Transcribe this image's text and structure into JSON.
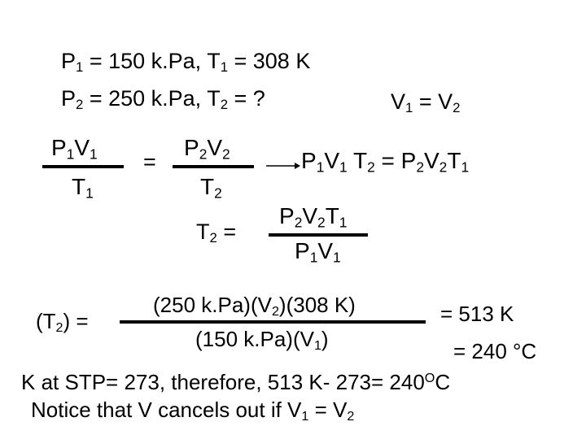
{
  "given": {
    "line1": [
      "P",
      "1",
      " = 150 k.Pa,  T",
      "1",
      " = 308 K"
    ],
    "line2": [
      "P",
      "2",
      " = 250 k.Pa,  T",
      "2",
      " = ?"
    ],
    "volume": [
      "V",
      "1",
      " = V",
      "2"
    ]
  },
  "law": {
    "left_num": [
      "P",
      "1",
      "V",
      "1"
    ],
    "left_den": [
      "T",
      "1"
    ],
    "equals": "=",
    "right_num": [
      "P",
      "2",
      "V",
      "2"
    ],
    "right_den": [
      "T",
      "2"
    ],
    "cross": [
      "P",
      "1",
      "V",
      "1",
      " T",
      "2",
      "  =  P",
      "2",
      "V",
      "2",
      "T",
      "1"
    ]
  },
  "solve": {
    "lhs": [
      "T",
      "2",
      "  ="
    ],
    "num": [
      "P",
      "2",
      "V",
      "2",
      "T",
      "1"
    ],
    "den": [
      "P",
      "1",
      "V",
      "1"
    ]
  },
  "calc": {
    "lhs": [
      "(T",
      "2",
      ")  ="
    ],
    "num": [
      "(250 k.Pa)(V",
      "2",
      ")(308 K)"
    ],
    "den": [
      "(150 k.Pa)(V",
      "1",
      ")"
    ],
    "result_k": "=  513 K",
    "result_c": "= 240 °C"
  },
  "notes": {
    "stp": [
      "K at STP= 273, therefore, 513 K- 273= 240",
      "O",
      "C"
    ],
    "cancel": [
      "Notice that V cancels out if V",
      "1",
      " = V",
      "2"
    ]
  }
}
